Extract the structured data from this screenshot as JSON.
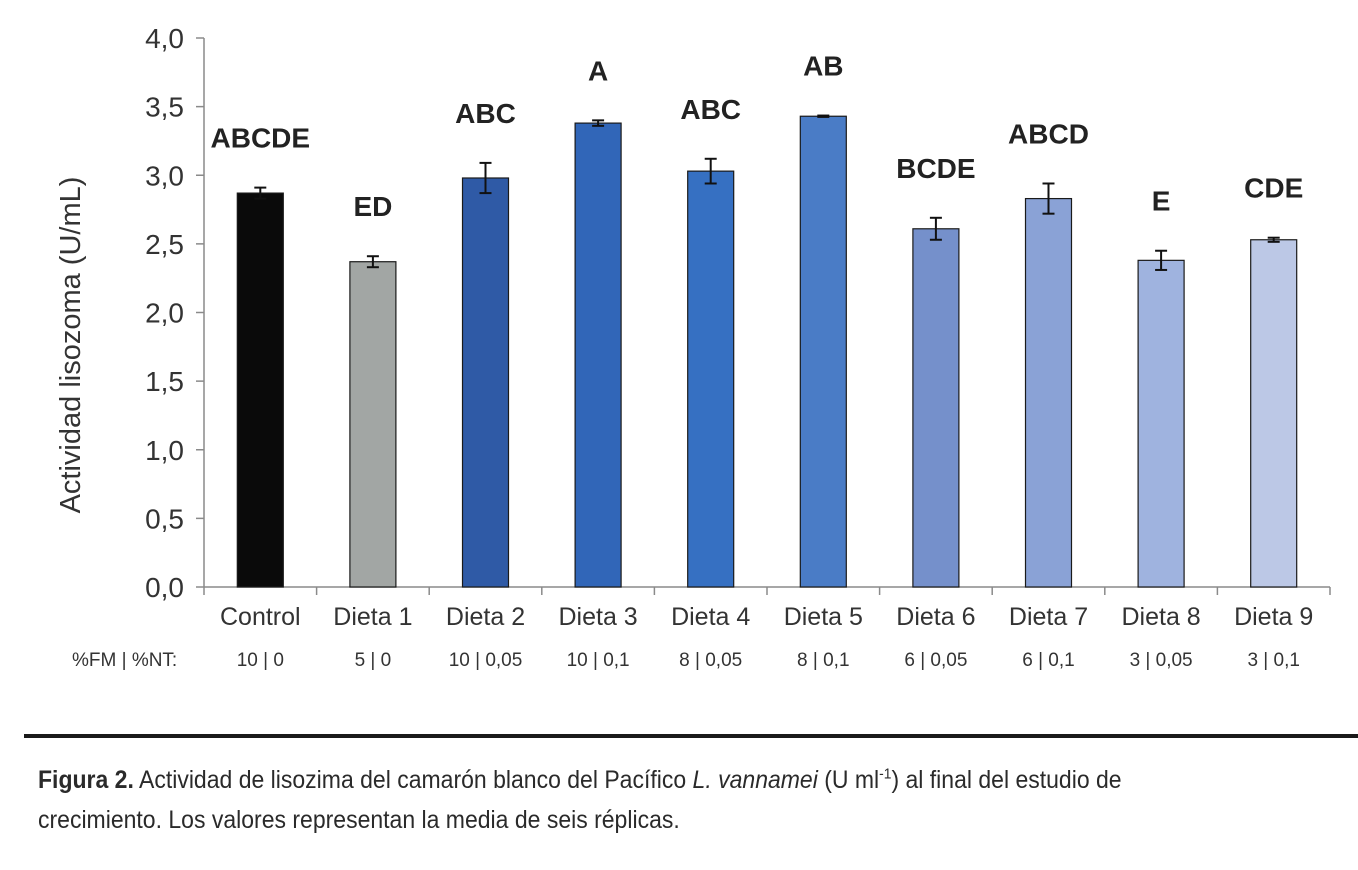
{
  "chart_data": {
    "type": "bar",
    "ylabel": "Actividad lisozoma (U/mL)",
    "ylim": [
      0,
      4
    ],
    "yticks": [
      "0,0",
      "0,5",
      "1,0",
      "1,5",
      "2,0",
      "2,5",
      "3,0",
      "3,5",
      "4,0"
    ],
    "ytick_values": [
      0,
      0.5,
      1,
      1.5,
      2,
      2.5,
      3,
      3.5,
      4
    ],
    "categories": [
      "Control",
      "Dieta 1",
      "Dieta 2",
      "Dieta 3",
      "Dieta 4",
      "Dieta 5",
      "Dieta 6",
      "Dieta 7",
      "Dieta 8",
      "Dieta 9"
    ],
    "values": [
      2.87,
      2.37,
      2.98,
      3.38,
      3.03,
      3.43,
      2.61,
      2.83,
      2.38,
      2.53
    ],
    "errors": [
      0.04,
      0.04,
      0.11,
      0.02,
      0.09,
      0.005,
      0.08,
      0.11,
      0.07,
      0.015
    ],
    "significance": [
      "ABCDE",
      "ED",
      "ABC",
      "A",
      "ABC",
      "AB",
      "BCDE",
      "ABCD",
      "E",
      "CDE"
    ],
    "composition_label": "%FM | %NT:",
    "composition": [
      "10 | 0",
      "5 | 0",
      "10 | 0,05",
      "10 | 0,1",
      "8 | 0,05",
      "8 | 0,1",
      "6 | 0,05",
      "6 | 0,1",
      "3 | 0,05",
      "3 | 0,1"
    ],
    "colors": [
      "#0a0a0a",
      "#a2a6a4",
      "#2f5aa6",
      "#3166b8",
      "#3670c2",
      "#4a7cc6",
      "#7590cb",
      "#8aa2d6",
      "#9fb3df",
      "#bcc8e6"
    ],
    "grid": false,
    "legend": "none"
  },
  "caption": {
    "label": "Figura 2.",
    "text1": " Actividad de lisozima del camarón blanco del Pacífico ",
    "species": "L. vannamei",
    "text2": " (U ml",
    "sup": "-1",
    "text3": ") al final del estudio de crecimiento. Los valores representan la media de seis réplicas."
  }
}
